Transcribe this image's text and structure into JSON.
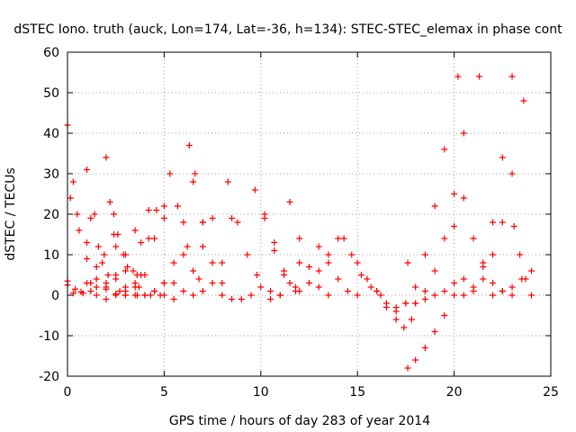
{
  "chart_data": {
    "type": "scatter",
    "title": "dSTEC Iono. truth (auck, Lon=174, Lat=-36, h=134): STEC-STEC_elemax in phase cont",
    "xlabel": "GPS time / hours of day 283 of year 2014",
    "ylabel": "dSTEC  / TECUs",
    "xlim": [
      0,
      25
    ],
    "ylim": [
      -20,
      60
    ],
    "xticks": [
      0,
      5,
      10,
      15,
      20,
      25
    ],
    "yticks": [
      -20,
      -10,
      0,
      10,
      20,
      30,
      40,
      50,
      60
    ],
    "grid": true,
    "marker": "plus",
    "color": "#ff0000",
    "series": [
      {
        "x": [
          0.0,
          0.3,
          0.6,
          1.0,
          1.5,
          2.0,
          2.5,
          3.0
        ],
        "y": [
          42,
          28,
          16,
          9,
          4,
          1.5,
          0.3,
          0
        ]
      },
      {
        "x": [
          0.0,
          0.3,
          0.7,
          1.2,
          1.8,
          2.4
        ],
        "y": [
          2.5,
          0.5,
          0.8,
          3,
          8,
          15
        ]
      },
      {
        "x": [
          0.15,
          0.5,
          1.0,
          1.5,
          2.0
        ],
        "y": [
          24,
          20,
          13,
          7,
          3
        ]
      },
      {
        "x": [
          0.0,
          0.4,
          0.8,
          1.2
        ],
        "y": [
          3.5,
          1.5,
          0.5,
          1
        ]
      },
      {
        "x": [
          1.0,
          1.4,
          1.9,
          2.5,
          3.0,
          3.6
        ],
        "y": [
          31,
          20,
          10,
          4,
          1,
          0
        ]
      },
      {
        "x": [
          1.0,
          1.5,
          2.0,
          2.5,
          3.0,
          3.5
        ],
        "y": [
          3,
          0,
          2,
          5,
          10,
          16
        ]
      },
      {
        "x": [
          1.2,
          1.6,
          2.1,
          2.7
        ],
        "y": [
          19,
          12,
          5,
          1
        ]
      },
      {
        "x": [
          2.0,
          2.4,
          2.9,
          3.5,
          4.0
        ],
        "y": [
          34,
          20,
          10,
          3,
          0
        ]
      },
      {
        "x": [
          2.2,
          2.6,
          3.1,
          3.7,
          4.3,
          4.8
        ],
        "y": [
          23,
          15,
          7,
          2,
          0,
          0
        ]
      },
      {
        "x": [
          1.5,
          2.0,
          2.5,
          3.0,
          3.6
        ],
        "y": [
          2,
          -1,
          0,
          2,
          5
        ]
      },
      {
        "x": [
          2.5,
          3.0,
          3.5,
          4.0,
          4.5,
          5.0
        ],
        "y": [
          12,
          6,
          2,
          0,
          1,
          3
        ]
      },
      {
        "x": [
          3.5,
          3.8,
          4.2,
          4.6,
          5.0
        ],
        "y": [
          0,
          5,
          14,
          21,
          19
        ]
      },
      {
        "x": [
          3.0,
          3.4,
          3.8,
          4.2
        ],
        "y": [
          0,
          6,
          13,
          21
        ]
      },
      {
        "x": [
          4.0,
          4.5,
          5.0,
          5.3,
          5.7,
          6.2,
          6.8
        ],
        "y": [
          5,
          14,
          22,
          30,
          22,
          12,
          4
        ]
      },
      {
        "x": [
          4.5,
          5.0,
          5.5,
          6.0,
          6.3,
          6.6,
          7.0,
          7.5,
          8.0
        ],
        "y": [
          1,
          3,
          8,
          18,
          37,
          30,
          18,
          8,
          3
        ]
      },
      {
        "x": [
          5.0,
          5.5,
          6.0,
          6.5,
          7.0
        ],
        "y": [
          0,
          3,
          10,
          28,
          18
        ]
      },
      {
        "x": [
          5.5,
          6.0,
          6.5,
          7.0,
          7.5
        ],
        "y": [
          -1,
          1,
          6,
          12,
          19
        ]
      },
      {
        "x": [
          6.5,
          7.0,
          7.5,
          8.0,
          8.5
        ],
        "y": [
          0,
          1,
          3,
          8,
          19
        ]
      },
      {
        "x": [
          8.3,
          8.8,
          9.3,
          9.8,
          10.5,
          11.0
        ],
        "y": [
          28,
          18,
          10,
          5,
          1,
          0
        ]
      },
      {
        "x": [
          8.0,
          8.5,
          9.0,
          9.5,
          10.0
        ],
        "y": [
          0,
          -1,
          -1,
          0,
          2
        ]
      },
      {
        "x": [
          9.7,
          10.2,
          10.7,
          11.2,
          11.8
        ],
        "y": [
          26,
          19,
          11,
          5,
          1
        ]
      },
      {
        "x": [
          10.2,
          10.7,
          11.2,
          11.8
        ],
        "y": [
          20,
          13,
          6,
          2
        ]
      },
      {
        "x": [
          10.5,
          11.0,
          11.5,
          12.0
        ],
        "y": [
          -1,
          0,
          3,
          8
        ]
      },
      {
        "x": [
          11.5,
          12.0,
          12.5,
          13.0,
          13.5
        ],
        "y": [
          23,
          14,
          7,
          2,
          0
        ]
      },
      {
        "x": [
          12.0,
          12.5,
          13.0,
          13.5,
          14.0
        ],
        "y": [
          1,
          3,
          6,
          10,
          14
        ]
      },
      {
        "x": [
          13.0,
          13.5,
          14.0,
          14.5,
          15.0
        ],
        "y": [
          12,
          8,
          4,
          1,
          0
        ]
      },
      {
        "x": [
          14.3,
          14.7,
          15.2,
          15.7,
          16.2
        ],
        "y": [
          14,
          10,
          5,
          2,
          0
        ]
      },
      {
        "x": [
          15.0,
          15.5,
          16.0,
          16.5,
          17.0,
          17.6
        ],
        "y": [
          8,
          4,
          1,
          -2,
          -4,
          8
        ]
      },
      {
        "x": [
          16.0,
          16.5,
          17.0,
          17.4,
          17.8
        ],
        "y": [
          1,
          -3,
          -6,
          -8,
          -6
        ]
      },
      {
        "x": [
          17.6,
          18.0,
          18.5,
          19.0,
          19.5,
          20.0,
          20.5
        ],
        "y": [
          -18,
          -16,
          -13,
          -9,
          -5,
          0,
          4
        ]
      },
      {
        "x": [
          17.5,
          18.0,
          18.5,
          19.0,
          19.5,
          20.2
        ],
        "y": [
          -2,
          2,
          10,
          22,
          36,
          54
        ]
      },
      {
        "x": [
          17.0,
          17.5,
          18.0,
          18.5,
          19.0,
          19.5,
          20.0
        ],
        "y": [
          -3,
          -2,
          -2,
          -1,
          0,
          1,
          3
        ]
      },
      {
        "x": [
          18.0,
          18.5,
          19.0,
          19.5,
          20.0,
          20.5,
          21.3
        ],
        "y": [
          -2,
          1,
          6,
          14,
          25,
          40,
          54
        ]
      },
      {
        "x": [
          20.0,
          20.5,
          21.0,
          21.5,
          22.0,
          22.5,
          23.0
        ],
        "y": [
          17,
          24,
          14,
          7,
          3,
          1,
          0
        ]
      },
      {
        "x": [
          20.5,
          21.0,
          21.5,
          22.0,
          22.5,
          23.0
        ],
        "y": [
          0,
          2,
          8,
          18,
          34,
          54
        ]
      },
      {
        "x": [
          21.0,
          21.5,
          22.0,
          22.5,
          23.0,
          23.6
        ],
        "y": [
          1,
          4,
          10,
          18,
          30,
          48
        ]
      },
      {
        "x": [
          23.1,
          23.4,
          23.7,
          24.0
        ],
        "y": [
          17,
          10,
          4,
          0
        ]
      },
      {
        "x": [
          22.0,
          22.5,
          23.0,
          23.5,
          24.0
        ],
        "y": [
          0,
          1,
          2,
          4,
          6
        ]
      }
    ]
  }
}
